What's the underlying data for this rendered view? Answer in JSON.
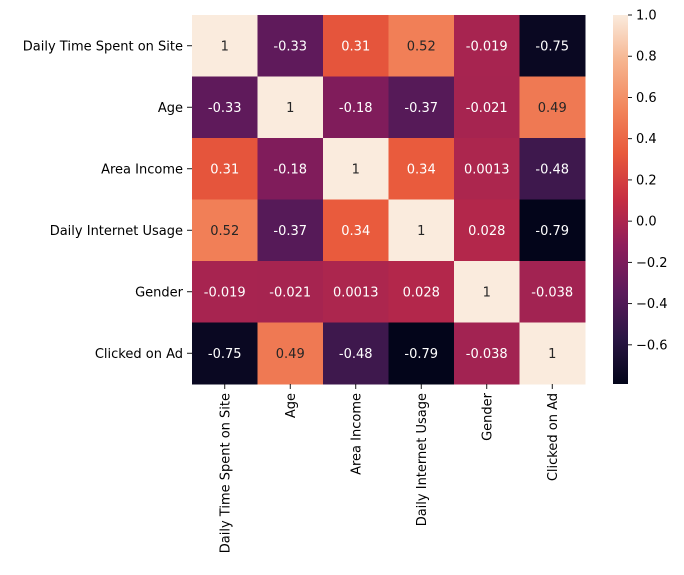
{
  "chart_data": {
    "type": "heatmap",
    "title": "",
    "xlabel": "",
    "ylabel": "",
    "row_labels": [
      "Daily Time Spent on Site",
      "Age",
      "Area Income",
      "Daily Internet Usage",
      "Gender",
      "Clicked on Ad"
    ],
    "col_labels": [
      "Daily Time Spent on Site",
      "Age",
      "Area Income",
      "Daily Internet Usage",
      "Gender",
      "Clicked on Ad"
    ],
    "values": [
      [
        1,
        -0.33,
        0.31,
        0.52,
        -0.019,
        -0.75
      ],
      [
        -0.33,
        1,
        -0.18,
        -0.37,
        -0.021,
        0.49
      ],
      [
        0.31,
        -0.18,
        1,
        0.34,
        0.0013,
        -0.48
      ],
      [
        0.52,
        -0.37,
        0.34,
        1,
        0.028,
        -0.79
      ],
      [
        -0.019,
        -0.021,
        0.0013,
        0.028,
        1,
        -0.038
      ],
      [
        -0.75,
        0.49,
        -0.48,
        -0.79,
        -0.038,
        1
      ]
    ],
    "value_labels": [
      [
        "1",
        "-0.33",
        "0.31",
        "0.52",
        "-0.019",
        "-0.75"
      ],
      [
        "-0.33",
        "1",
        "-0.18",
        "-0.37",
        "-0.021",
        "0.49"
      ],
      [
        "0.31",
        "-0.18",
        "1",
        "0.34",
        "0.0013",
        "-0.48"
      ],
      [
        "0.52",
        "-0.37",
        "0.34",
        "1",
        "0.028",
        "-0.79"
      ],
      [
        "-0.019",
        "-0.021",
        "0.0013",
        "0.028",
        "1",
        "-0.038"
      ],
      [
        "-0.75",
        "0.49",
        "-0.48",
        "-0.79",
        "-0.038",
        "1"
      ]
    ],
    "colorbar": {
      "range": [
        -0.79,
        1.0
      ],
      "ticks": [
        1.0,
        0.8,
        0.6,
        0.4,
        0.2,
        0.0,
        -0.2,
        -0.4,
        -0.6
      ],
      "tick_labels": [
        "1.0",
        "0.8",
        "0.6",
        "0.4",
        "0.2",
        "0.0",
        "−0.2",
        "−0.4",
        "−0.6"
      ]
    },
    "colormap": "rocket",
    "colormap_stops": [
      "#03051a",
      "#2b1644",
      "#5c1a5b",
      "#8e1d5b",
      "#c62d42",
      "#e8593b",
      "#f2865c",
      "#f6b48f",
      "#faebdd"
    ]
  }
}
